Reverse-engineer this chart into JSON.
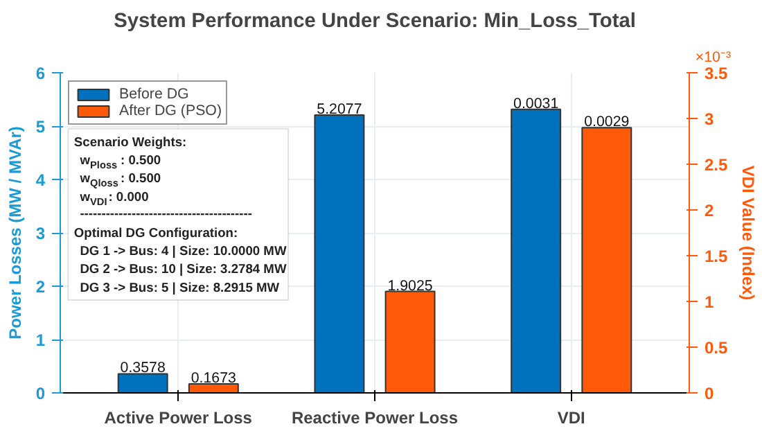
{
  "chart_data": {
    "type": "bar",
    "title": "System Performance Under Scenario: Min_Loss_Total",
    "categories": [
      "Active Power Loss",
      "Reactive Power Loss",
      "VDI"
    ],
    "series": [
      {
        "name": "Before DG",
        "color": "#0072bd",
        "values": [
          0.3578,
          5.2077,
          null
        ],
        "value_labels": [
          "0.3578",
          "5.2077",
          null
        ]
      },
      {
        "name": "After DG (PSO)",
        "color": "#ff5a0a",
        "values": [
          0.1673,
          1.9025,
          null
        ],
        "value_labels": [
          "0.1673",
          "1.9025",
          null
        ]
      },
      {
        "color": "#0072bd",
        "values": [
          null,
          null,
          3.1
        ],
        "axis": "y2"
      },
      {
        "color": "#ff5a0a",
        "values": [
          null,
          null,
          2.9
        ],
        "axis": "y2"
      }
    ],
    "ylabel": "Power Losses (MW / MVAr)",
    "y2label": "VDI Value (Index)",
    "ylim": [
      0,
      6
    ],
    "yticks": [
      0,
      1,
      2,
      3,
      4,
      5,
      6
    ],
    "y2lim": [
      0,
      3.5
    ],
    "y2ticks": [
      0,
      0.5,
      1,
      1.5,
      2,
      2.5,
      3,
      3.5
    ],
    "annotations": [
      "×10⁻³",
      "Scenario Weights:",
      "w$_{Ploss}$: 0.500",
      "w$_{Qloss}$: 0.500",
      "w$_{VDI}$: 0.000",
      "----------------------------------------",
      "Optimal DG Configuration:",
      "DG 1 -> Bus: 4 | Size: 10.0000 MW",
      "DG 2 -> Bus: 10 | Size: 3.2784 MW",
      "DG 3 -> Bus: 5 | Size: 8.2915 MW",
      "0.0031",
      "0.0029"
    ],
    "grid": true,
    "legend": "top left"
  }
}
